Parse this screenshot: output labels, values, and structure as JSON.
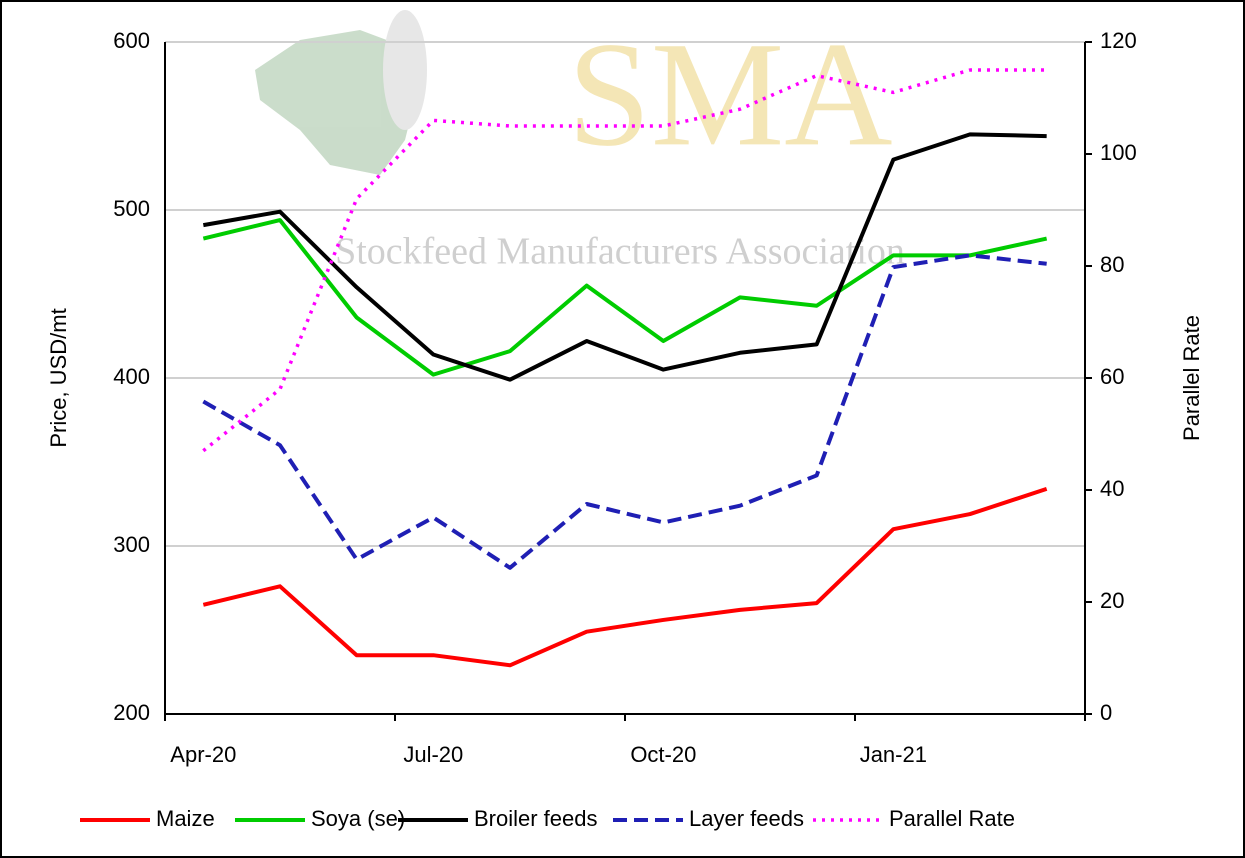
{
  "chart_data": {
    "type": "line",
    "watermark": {
      "logo": "SMA",
      "text": "Stockfeed Manufacturers Association"
    },
    "categories": [
      "Apr-20",
      null,
      null,
      "Jul-20",
      null,
      null,
      "Oct-20",
      null,
      null,
      "Jan-21",
      null,
      null
    ],
    "ylabel": "Price, USD/mt",
    "y2label": "Parallel Rate",
    "ylim": [
      200,
      600
    ],
    "yticks": [
      200,
      300,
      400,
      500,
      600
    ],
    "y2lim": [
      0,
      120
    ],
    "y2ticks": [
      0,
      20,
      40,
      60,
      80,
      100,
      120
    ],
    "grid": true,
    "legend": "bottom",
    "series": [
      {
        "name": "Maize",
        "color": "#ff0000",
        "dash": "solid",
        "values": [
          265,
          276,
          235,
          235,
          229,
          249,
          256,
          262,
          266,
          310,
          319,
          334
        ]
      },
      {
        "name": "Soya (se)",
        "color": "#00cc00",
        "dash": "solid",
        "values": [
          483,
          494,
          436,
          402,
          416,
          455,
          422,
          448,
          443,
          473,
          473,
          483
        ]
      },
      {
        "name": "Broiler feeds",
        "color": "#000000",
        "dash": "solid",
        "values": [
          491,
          499,
          454,
          414,
          399,
          422,
          405,
          415,
          420,
          530,
          545,
          544
        ]
      },
      {
        "name": "Layer feeds",
        "color": "#1f1fb4",
        "dash": "dashed",
        "values": [
          386,
          360,
          292,
          317,
          287,
          325,
          314,
          324,
          342,
          466,
          473,
          468
        ]
      },
      {
        "name": "Parallel Rate",
        "color": "#ff00ff",
        "dash": "dotted",
        "axis": "y2",
        "values": [
          47,
          58,
          92,
          106,
          105,
          105,
          105,
          108,
          114,
          111,
          115,
          115
        ]
      }
    ]
  }
}
